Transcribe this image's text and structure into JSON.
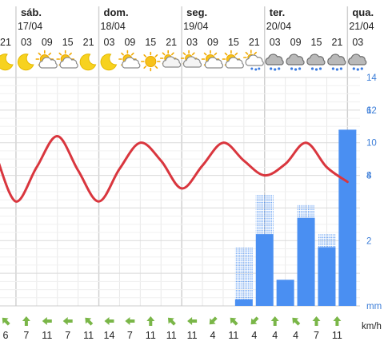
{
  "chart_data": {
    "type": "combo",
    "days": [
      {
        "name": "sáb.",
        "date": "17/04"
      },
      {
        "name": "dom.",
        "date": "18/04"
      },
      {
        "name": "seg.",
        "date": "19/04"
      },
      {
        "name": "ter.",
        "date": "20/04"
      },
      {
        "name": "qua.",
        "date": "21/04"
      }
    ],
    "hours": [
      "21",
      "03",
      "09",
      "15",
      "21",
      "03",
      "09",
      "15",
      "21",
      "03",
      "09",
      "15",
      "21",
      "03",
      "09",
      "15",
      "21",
      "03"
    ],
    "icons": [
      "moon",
      "moon",
      "partly-sunny",
      "partly-sunny",
      "moon",
      "moon",
      "partly-sunny",
      "sunny",
      "partly-cloudy",
      "partly-cloudy",
      "partly-sunny",
      "partly-sunny",
      "light-rain",
      "rain-cloud",
      "rain-cloud",
      "rain-cloud",
      "rain-cloud",
      "rain-cloud"
    ],
    "temperature": {
      "name": "",
      "color": "#d9363e",
      "points": [
        [
          -0.4,
          9.0
        ],
        [
          0.5,
          6.4
        ],
        [
          1.5,
          8.5
        ],
        [
          2.5,
          10.4
        ],
        [
          3.5,
          8.3
        ],
        [
          4.5,
          6.4
        ],
        [
          5.5,
          8.4
        ],
        [
          6.5,
          10.0
        ],
        [
          7.5,
          8.9
        ],
        [
          8.5,
          7.2
        ],
        [
          9.5,
          8.6
        ],
        [
          10.5,
          10.0
        ],
        [
          11.5,
          8.9
        ],
        [
          12.5,
          8.0
        ],
        [
          13.5,
          8.7
        ],
        [
          14.5,
          10.0
        ],
        [
          15.5,
          8.5
        ],
        [
          16.5,
          7.6
        ]
      ],
      "ylim": [
        0,
        14
      ],
      "ticks": [
        8,
        10,
        12,
        14
      ]
    },
    "precipitation": {
      "unit": "mm",
      "color": "#4a8ff2",
      "ylim": [
        0,
        7
      ],
      "ticks": [
        2,
        4,
        6
      ],
      "bars": [
        {
          "x": 11.5,
          "value": 0.2,
          "max": 1.8
        },
        {
          "x": 12.5,
          "value": 2.2,
          "max": 3.4
        },
        {
          "x": 13.5,
          "value": 0.8,
          "max": 0.8
        },
        {
          "x": 14.5,
          "value": 2.7,
          "max": 3.1
        },
        {
          "x": 15.5,
          "value": 1.8,
          "max": 2.2
        },
        {
          "x": 16.5,
          "value": 5.4,
          "max": 5.4
        }
      ]
    },
    "wind": {
      "unit": "km/h",
      "color": "#7ab648",
      "speeds": [
        "6",
        "7",
        "11",
        "7",
        "11",
        "14",
        "7",
        "11",
        "11",
        "11",
        "4",
        "11",
        "4",
        "4",
        "4",
        "7",
        "11"
      ],
      "direction_deg": [
        315,
        0,
        270,
        270,
        315,
        270,
        270,
        0,
        315,
        270,
        225,
        315,
        225,
        0,
        315,
        0,
        0
      ]
    },
    "grid": true
  }
}
